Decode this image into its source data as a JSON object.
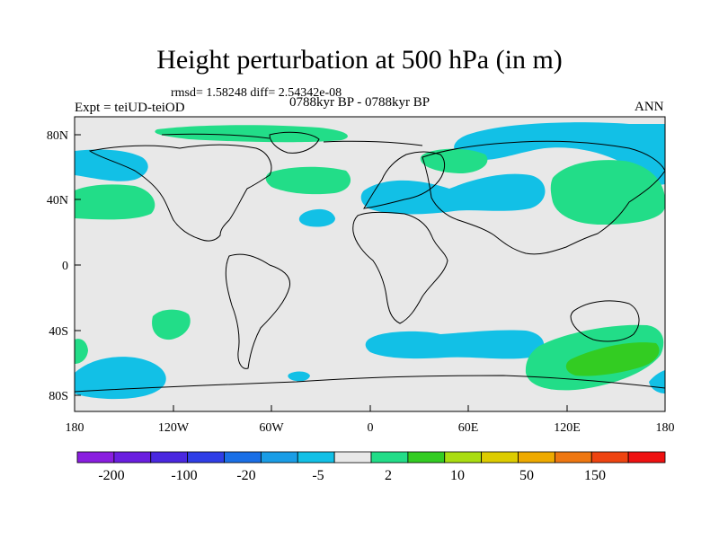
{
  "title": "Height perturbation at 500 hPa (in m)",
  "stats": "rmsd= 1.58248  diff= 2.54342e-08",
  "header": {
    "left": "Expt = teiUD-teiOD",
    "center": "0788kyr BP - 0788kyr BP",
    "right": "ANN"
  },
  "axes": {
    "lon_ticks": [
      "180",
      "120W",
      "60W",
      "0",
      "60E",
      "120E",
      "180"
    ],
    "lat_ticks": [
      "80N",
      "40N",
      "0",
      "40S",
      "80S"
    ]
  },
  "colorbar": {
    "colors": [
      "#8a1ee0",
      "#6a1ee0",
      "#4a28e0",
      "#2f3ee6",
      "#1a6fe6",
      "#1a9de6",
      "#12c0e6",
      "#e8e8e8",
      "#22dd88",
      "#33cc22",
      "#aadd11",
      "#ddcc00",
      "#eeaa00",
      "#ee7711",
      "#ee4411",
      "#ee1111"
    ],
    "labels": [
      "-200",
      "-100",
      "-20",
      "-5",
      "2",
      "10",
      "50",
      "150"
    ]
  },
  "map_colors": {
    "background": "#e8e8e8",
    "negative": "#12c0e6",
    "positive": "#22dd88",
    "positive_strong": "#33cc22",
    "coast": "#000000"
  }
}
